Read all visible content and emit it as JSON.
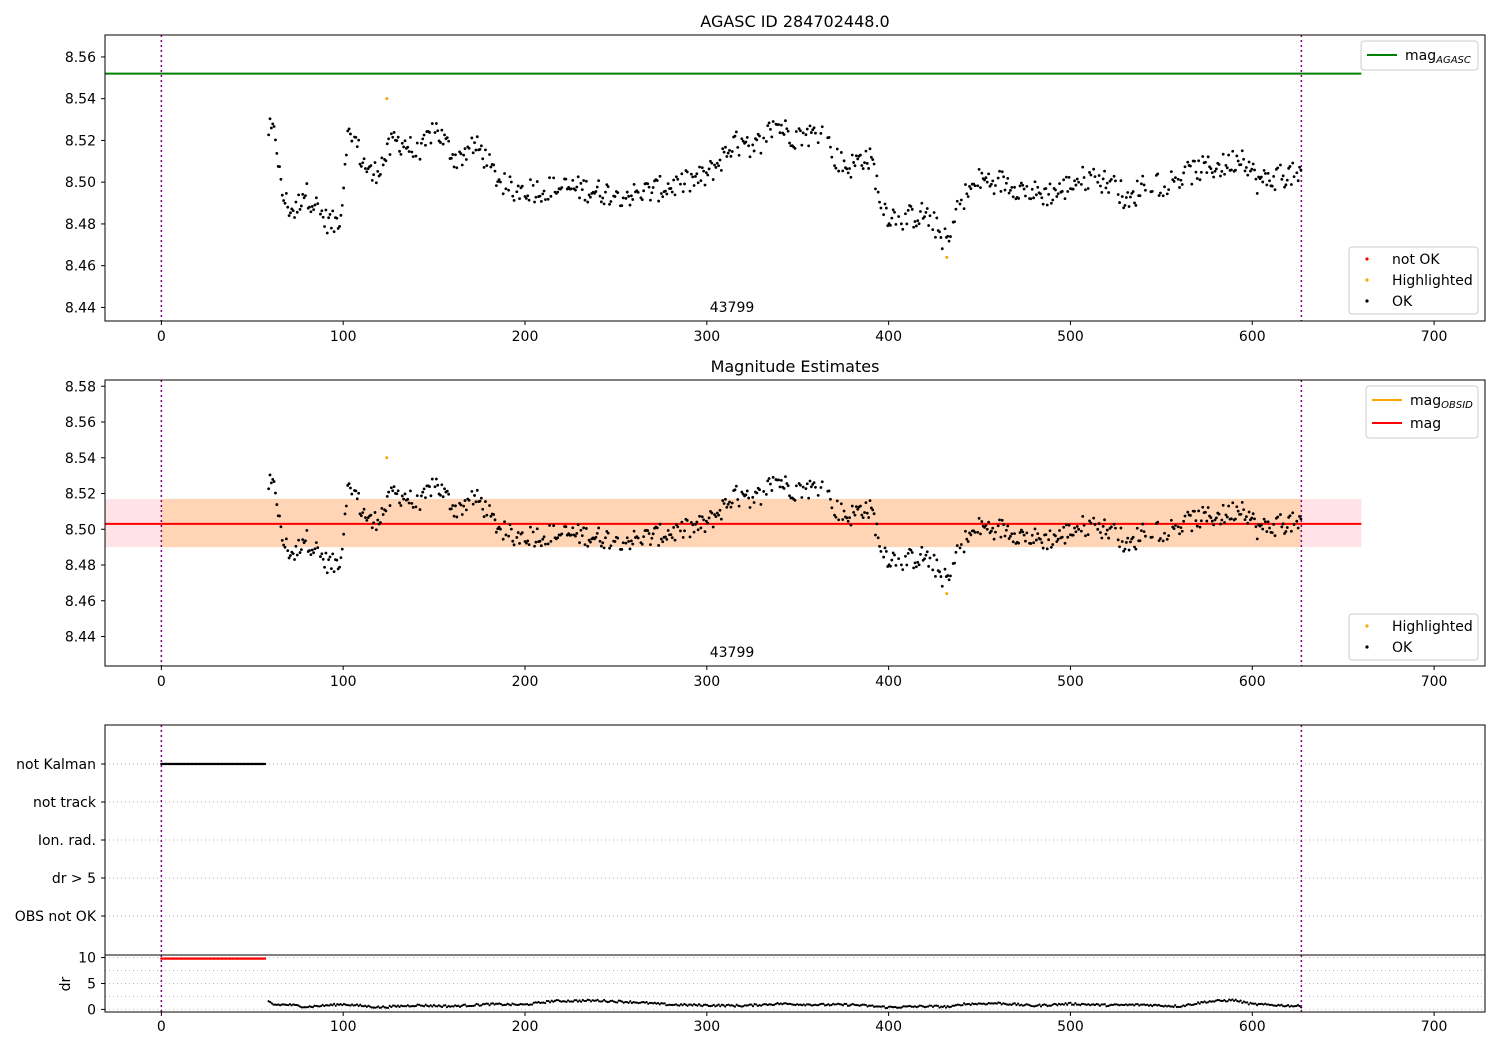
{
  "chart_data": [
    {
      "type": "scatter",
      "title": "AGASC ID 284702448.0",
      "xlim": [
        -31,
        728
      ],
      "ylim": [
        8.4335,
        8.5705
      ],
      "xticks": [
        0,
        100,
        200,
        300,
        400,
        500,
        600,
        700
      ],
      "yticks": [
        8.44,
        8.46,
        8.48,
        8.5,
        8.52,
        8.54,
        8.56
      ],
      "vlines": [
        0,
        627
      ],
      "hline": {
        "name": "mag_AGASC",
        "value": 8.552,
        "color": "#008000"
      },
      "annotation": {
        "text": "43799",
        "x": 313
      },
      "legend_top": [
        {
          "label": "mag",
          "sub": "AGASC",
          "color": "#008000"
        }
      ],
      "legend_bottom": [
        {
          "label": "not OK",
          "color": "#ff0000"
        },
        {
          "label": "Highlighted",
          "color": "#ffa500"
        },
        {
          "label": "OK",
          "color": "#000000"
        }
      ],
      "highlighted_points": [
        [
          124,
          8.54
        ],
        [
          432,
          8.464
        ]
      ],
      "ok_points_range": [
        59,
        627
      ]
    },
    {
      "type": "scatter",
      "title": "Magnitude Estimates",
      "xlim": [
        -31,
        728
      ],
      "ylim": [
        8.4235,
        8.5835
      ],
      "xticks": [
        0,
        100,
        200,
        300,
        400,
        500,
        600,
        700
      ],
      "yticks": [
        8.44,
        8.46,
        8.48,
        8.5,
        8.52,
        8.54,
        8.56,
        8.58
      ],
      "vlines": [
        0,
        627
      ],
      "mag": 8.503,
      "mag_band": [
        8.49,
        8.517
      ],
      "mag_obsid": 8.503,
      "annotation": {
        "text": "43799",
        "x": 313
      },
      "legend_top": [
        {
          "label": "mag",
          "sub": "OBSID",
          "color": "#ffa500"
        },
        {
          "label": "mag",
          "sub": "",
          "color": "#ff0000"
        }
      ],
      "legend_bottom": [
        {
          "label": "Highlighted",
          "color": "#ffa500"
        },
        {
          "label": "OK",
          "color": "#000000"
        }
      ],
      "highlighted_points": [
        [
          124,
          8.54
        ],
        [
          432,
          8.464
        ]
      ]
    },
    {
      "type": "scatter",
      "title": "",
      "xlim": [
        -31,
        728
      ],
      "yticklabels": [
        "not Kalman",
        "not track",
        "Ion. rad.",
        "dr > 5",
        "OBS not OK"
      ],
      "flags": {
        "not Kalman": [
          0,
          57
        ]
      },
      "vlines": [
        0,
        627
      ]
    },
    {
      "type": "line",
      "ylabel": "dr",
      "xlim": [
        -31,
        728
      ],
      "ylim": [
        -0.5,
        10.5
      ],
      "yticks": [
        0,
        5,
        10
      ],
      "xticks": [
        0,
        100,
        200,
        300,
        400,
        500,
        600,
        700
      ],
      "vlines": [
        0,
        627
      ],
      "dr_flag_range": [
        0,
        57
      ],
      "dr_flag_value": 9.8
    }
  ]
}
